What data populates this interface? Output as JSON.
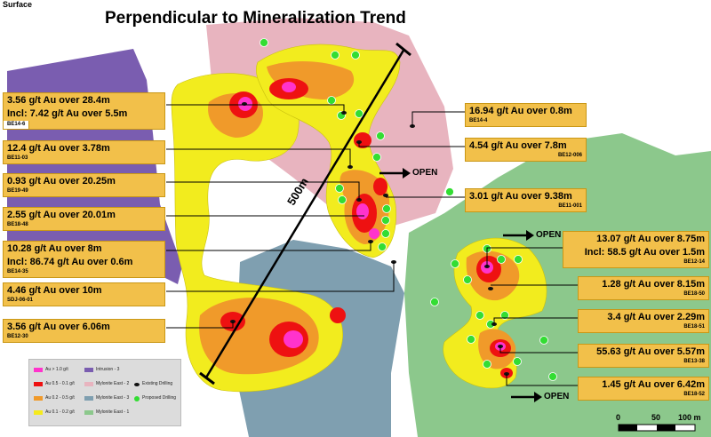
{
  "header": {
    "section_label": "Surface",
    "title": "Perpendicular to Mineralization Trend"
  },
  "scale_length_label": "500m",
  "open_labels": [
    "OPEN",
    "OPEN",
    "OPEN"
  ],
  "callouts": [
    {
      "lines": [
        "3.56 g/t Au over 28.4m",
        "Incl: 7.42 g/t Au over 5.5m"
      ],
      "hole": "BE14-6"
    },
    {
      "lines": [
        "12.4 g/t Au over 3.78m"
      ],
      "hole": "BE11-03"
    },
    {
      "lines": [
        "0.93 g/t Au over 20.25m"
      ],
      "hole": "BE19-49"
    },
    {
      "lines": [
        "2.55 g/t Au over 20.01m"
      ],
      "hole": "BE18-48"
    },
    {
      "lines": [
        "10.28 g/t Au over 8m",
        "Incl: 86.74 g/t Au over 0.6m"
      ],
      "hole": "BE14-35"
    },
    {
      "lines": [
        "4.46 g/t Au over 10m"
      ],
      "hole": "SDJ-06-01"
    },
    {
      "lines": [
        "3.56 g/t Au over 6.06m"
      ],
      "hole": "BE12-30"
    },
    {
      "lines": [
        "16.94 g/t Au over 0.8m"
      ],
      "hole": "BE14-4"
    },
    {
      "lines": [
        "4.54 g/t Au over 7.8m"
      ],
      "hole": "BE12-006"
    },
    {
      "lines": [
        "3.01 g/t Au over 9.38m"
      ],
      "hole": "BE11-001"
    },
    {
      "lines": [
        "13.07 g/t Au over 8.75m",
        "Incl: 58.5 g/t Au over 1.5m"
      ],
      "hole": "BE12-14"
    },
    {
      "lines": [
        "1.28 g/t Au over 8.15m"
      ],
      "hole": "BE18-50"
    },
    {
      "lines": [
        "3.4 g/t Au over 2.29m"
      ],
      "hole": "BE18-51"
    },
    {
      "lines": [
        "55.63 g/t Au over 5.57m"
      ],
      "hole": "BE13-38"
    },
    {
      "lines": [
        "1.45 g/t Au over 6.42m"
      ],
      "hole": "BE18-52"
    }
  ],
  "legend": [
    {
      "label": "Au > 1.0 g/t",
      "color": "#ff33cc",
      "kind": "swatch"
    },
    {
      "label": "Au 0.5 - 0.1 g/t",
      "color": "#ee1111",
      "kind": "swatch"
    },
    {
      "label": "Au 0.2 - 0.5 g/t",
      "color": "#f09a2a",
      "kind": "swatch"
    },
    {
      "label": "Au 0.1 - 0.2 g/t",
      "color": "#f5ea1c",
      "kind": "swatch"
    },
    {
      "label": "Intrusion - 3",
      "color": "#7a5db0",
      "kind": "swatch"
    },
    {
      "label": "Mylonite East - 2",
      "color": "#e8b4bf",
      "kind": "swatch"
    },
    {
      "label": "Mylonite East - 3",
      "color": "#7f9fb0",
      "kind": "swatch"
    },
    {
      "label": "Mylonite East - 1",
      "color": "#8cc88c",
      "kind": "swatch"
    },
    {
      "label": "Existing Drilling",
      "color": "#111111",
      "kind": "drill"
    },
    {
      "label": "Proposed Drilling",
      "color": "#33dd33",
      "kind": "dot"
    }
  ],
  "scale_bar": {
    "ticks": [
      "0",
      "50",
      "100 m"
    ]
  },
  "colors": {
    "intrusion": "#7a5db0",
    "mylonite_east_2": "#e8b4bf",
    "mylonite_east_3": "#7f9fb0",
    "mylonite_east_1": "#8cc88c",
    "callout": "#f2c04a",
    "proposed": "#33dd33"
  }
}
